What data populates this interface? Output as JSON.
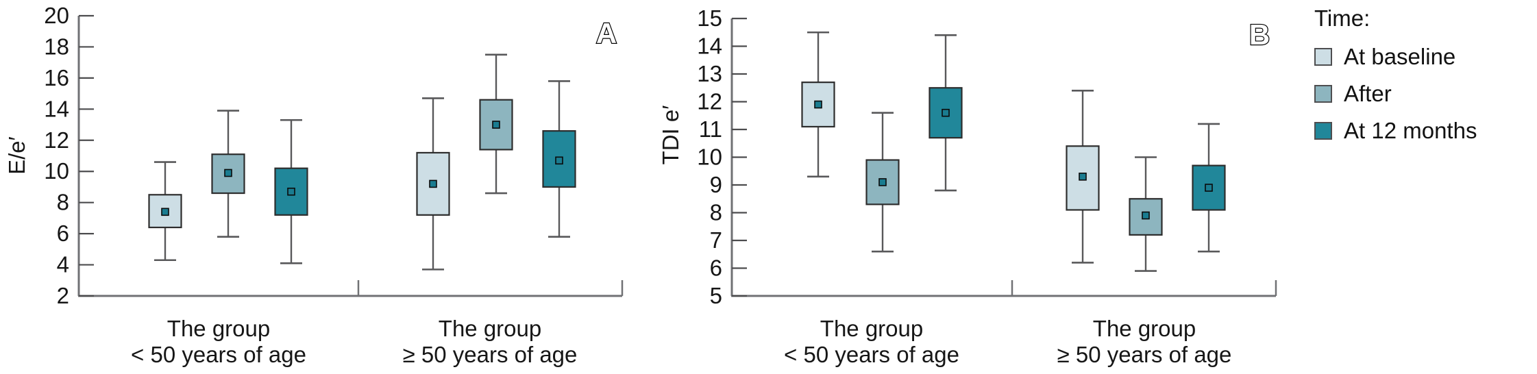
{
  "figure": {
    "panel_a_letter": "A",
    "panel_b_letter": "B"
  },
  "legend": {
    "title": "Time:",
    "items": [
      {
        "label": "At baseline",
        "color": "#cddee5"
      },
      {
        "label": "After",
        "color": "#8db5bf"
      },
      {
        "label": "At 12 months",
        "color": "#21879a"
      }
    ]
  },
  "style": {
    "axis": "#707174",
    "tick": "#4c4c4e",
    "box_border": "#2d2d2d",
    "whisker": "#58585a",
    "text": "#161616",
    "mean_marker_fill": "#1a7c90",
    "mean_marker_stroke": "#0a0a0a",
    "panel_letter_fill": "#ffffff",
    "panel_letter_stroke": "#000000"
  },
  "chart_data": [
    {
      "type": "box",
      "panel_label": "A",
      "ylabel": "E/e′",
      "ylim": [
        2,
        20
      ],
      "yticks": [
        2,
        4,
        6,
        8,
        10,
        12,
        14,
        16,
        18,
        20
      ],
      "grid": false,
      "legend_position": "outside-right-shared",
      "categories": [
        [
          "The group",
          "< 50 years of age"
        ],
        [
          "The group",
          "≥ 50 years of age"
        ]
      ],
      "series": [
        {
          "name": "At baseline",
          "color": "#cddee5",
          "boxes": [
            {
              "whislo": 4.3,
              "q1": 6.4,
              "mean": 7.4,
              "q3": 8.5,
              "whishi": 10.6
            },
            {
              "whislo": 3.7,
              "q1": 7.2,
              "mean": 9.2,
              "q3": 11.2,
              "whishi": 14.7
            }
          ]
        },
        {
          "name": "After",
          "color": "#8db5bf",
          "boxes": [
            {
              "whislo": 5.8,
              "q1": 8.6,
              "mean": 9.9,
              "q3": 11.1,
              "whishi": 13.9
            },
            {
              "whislo": 8.6,
              "q1": 11.4,
              "mean": 13.0,
              "q3": 14.6,
              "whishi": 17.5
            }
          ]
        },
        {
          "name": "At 12 months",
          "color": "#21879a",
          "boxes": [
            {
              "whislo": 4.1,
              "q1": 7.2,
              "mean": 8.7,
              "q3": 10.2,
              "whishi": 13.3
            },
            {
              "whislo": 5.8,
              "q1": 9.0,
              "mean": 10.7,
              "q3": 12.6,
              "whishi": 15.8
            }
          ]
        }
      ]
    },
    {
      "type": "box",
      "panel_label": "B",
      "ylabel": "TDI e′",
      "ylim": [
        5,
        15
      ],
      "yticks": [
        5,
        6,
        7,
        8,
        9,
        10,
        11,
        12,
        13,
        14,
        15
      ],
      "grid": false,
      "legend_position": "outside-right-shared",
      "categories": [
        [
          "The group",
          "< 50 years of age"
        ],
        [
          "The group",
          "≥ 50 years of age"
        ]
      ],
      "series": [
        {
          "name": "At baseline",
          "color": "#cddee5",
          "boxes": [
            {
              "whislo": 9.3,
              "q1": 11.1,
              "mean": 11.9,
              "q3": 12.7,
              "whishi": 14.5
            },
            {
              "whislo": 6.2,
              "q1": 8.1,
              "mean": 9.3,
              "q3": 10.4,
              "whishi": 12.4
            }
          ]
        },
        {
          "name": "After",
          "color": "#8db5bf",
          "boxes": [
            {
              "whislo": 6.6,
              "q1": 8.3,
              "mean": 9.1,
              "q3": 9.9,
              "whishi": 11.6
            },
            {
              "whislo": 5.9,
              "q1": 7.2,
              "mean": 7.9,
              "q3": 8.5,
              "whishi": 10.0
            }
          ]
        },
        {
          "name": "At 12 months",
          "color": "#21879a",
          "boxes": [
            {
              "whislo": 8.8,
              "q1": 10.7,
              "mean": 11.6,
              "q3": 12.5,
              "whishi": 14.4
            },
            {
              "whislo": 6.6,
              "q1": 8.1,
              "mean": 8.9,
              "q3": 9.7,
              "whishi": 11.2
            }
          ]
        }
      ]
    }
  ]
}
